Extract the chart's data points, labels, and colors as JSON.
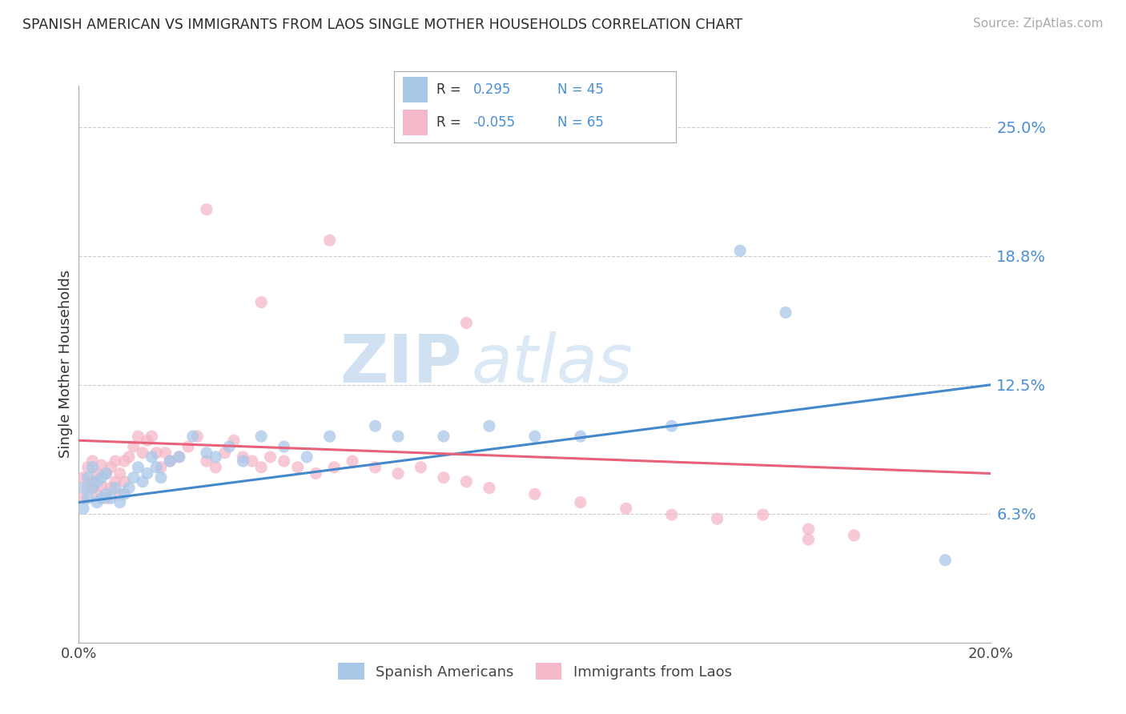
{
  "title": "SPANISH AMERICAN VS IMMIGRANTS FROM LAOS SINGLE MOTHER HOUSEHOLDS CORRELATION CHART",
  "source": "Source: ZipAtlas.com",
  "ylabel": "Single Mother Households",
  "xlim": [
    0.0,
    0.2
  ],
  "ylim": [
    0.0,
    0.27
  ],
  "yticks": [
    0.0,
    0.0625,
    0.125,
    0.1875,
    0.25
  ],
  "ytick_labels": [
    "",
    "6.3%",
    "12.5%",
    "18.8%",
    "25.0%"
  ],
  "xtick_vals": [
    0.0,
    0.2
  ],
  "xtick_labels": [
    "0.0%",
    "20.0%"
  ],
  "background_color": "#ffffff",
  "grid_color": "#cccccc",
  "color_blue": "#a8c8e8",
  "color_pink": "#f4b8c8",
  "line_color_blue": "#4488cc",
  "line_color_pink": "#e8607a",
  "watermark_zip": "ZIP",
  "watermark_atlas": "atlas",
  "series1_label": "Spanish Americans",
  "series2_label": "Immigrants from Laos",
  "blue_line_x": [
    0.0,
    0.2
  ],
  "blue_line_y": [
    0.068,
    0.125
  ],
  "pink_line_x": [
    0.0,
    0.2
  ],
  "pink_line_y": [
    0.098,
    0.082
  ],
  "blue_dots_x": [
    0.001,
    0.001,
    0.002,
    0.002,
    0.003,
    0.003,
    0.004,
    0.004,
    0.005,
    0.005,
    0.006,
    0.006,
    0.007,
    0.008,
    0.009,
    0.01,
    0.011,
    0.012,
    0.013,
    0.014,
    0.015,
    0.016,
    0.017,
    0.018,
    0.02,
    0.022,
    0.025,
    0.028,
    0.03,
    0.033,
    0.036,
    0.04,
    0.045,
    0.05,
    0.055,
    0.065,
    0.07,
    0.08,
    0.09,
    0.1,
    0.11,
    0.13,
    0.145,
    0.155,
    0.19
  ],
  "blue_dots_y": [
    0.065,
    0.075,
    0.07,
    0.08,
    0.075,
    0.085,
    0.068,
    0.078,
    0.07,
    0.08,
    0.072,
    0.082,
    0.07,
    0.075,
    0.068,
    0.072,
    0.075,
    0.08,
    0.085,
    0.078,
    0.082,
    0.09,
    0.085,
    0.08,
    0.088,
    0.09,
    0.1,
    0.092,
    0.09,
    0.095,
    0.088,
    0.1,
    0.095,
    0.09,
    0.1,
    0.105,
    0.1,
    0.1,
    0.105,
    0.1,
    0.1,
    0.105,
    0.19,
    0.16,
    0.04
  ],
  "pink_dots_x": [
    0.001,
    0.001,
    0.002,
    0.002,
    0.003,
    0.003,
    0.004,
    0.004,
    0.005,
    0.005,
    0.006,
    0.006,
    0.007,
    0.007,
    0.008,
    0.008,
    0.009,
    0.009,
    0.01,
    0.01,
    0.011,
    0.012,
    0.013,
    0.014,
    0.015,
    0.016,
    0.017,
    0.018,
    0.019,
    0.02,
    0.022,
    0.024,
    0.026,
    0.028,
    0.03,
    0.032,
    0.034,
    0.036,
    0.038,
    0.04,
    0.042,
    0.045,
    0.048,
    0.052,
    0.056,
    0.06,
    0.065,
    0.07,
    0.075,
    0.08,
    0.085,
    0.09,
    0.1,
    0.11,
    0.12,
    0.13,
    0.14,
    0.15,
    0.16,
    0.17,
    0.028,
    0.04,
    0.055,
    0.085,
    0.16
  ],
  "pink_dots_y": [
    0.07,
    0.08,
    0.075,
    0.085,
    0.078,
    0.088,
    0.072,
    0.082,
    0.076,
    0.086,
    0.07,
    0.082,
    0.075,
    0.085,
    0.078,
    0.088,
    0.072,
    0.082,
    0.078,
    0.088,
    0.09,
    0.095,
    0.1,
    0.092,
    0.098,
    0.1,
    0.092,
    0.085,
    0.092,
    0.088,
    0.09,
    0.095,
    0.1,
    0.088,
    0.085,
    0.092,
    0.098,
    0.09,
    0.088,
    0.085,
    0.09,
    0.088,
    0.085,
    0.082,
    0.085,
    0.088,
    0.085,
    0.082,
    0.085,
    0.08,
    0.078,
    0.075,
    0.072,
    0.068,
    0.065,
    0.062,
    0.06,
    0.062,
    0.055,
    0.052,
    0.21,
    0.165,
    0.195,
    0.155,
    0.05
  ]
}
